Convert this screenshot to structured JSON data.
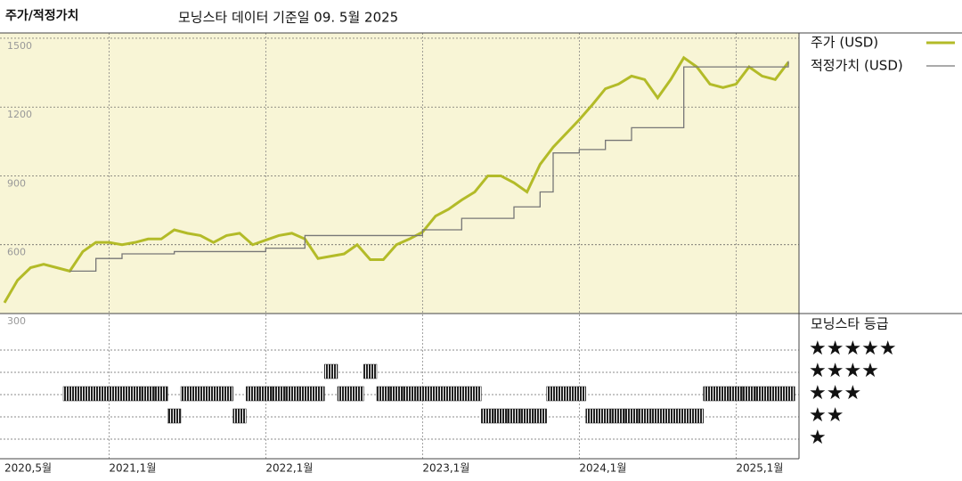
{
  "chart_data": [
    {
      "type": "line",
      "title": "주가/적정가치",
      "subtitle": "모닝스타 데이터 기준일 09. 5월 2025",
      "x": [
        "2020-05",
        "2020-06",
        "2020-07",
        "2020-08",
        "2020-09",
        "2020-10",
        "2020-11",
        "2020-12",
        "2021-01",
        "2021-02",
        "2021-03",
        "2021-04",
        "2021-05",
        "2021-06",
        "2021-07",
        "2021-08",
        "2021-09",
        "2021-10",
        "2021-11",
        "2021-12",
        "2022-01",
        "2022-02",
        "2022-03",
        "2022-04",
        "2022-05",
        "2022-06",
        "2022-07",
        "2022-08",
        "2022-09",
        "2022-10",
        "2022-11",
        "2022-12",
        "2023-01",
        "2023-02",
        "2023-03",
        "2023-04",
        "2023-05",
        "2023-06",
        "2023-07",
        "2023-08",
        "2023-09",
        "2023-10",
        "2023-11",
        "2023-12",
        "2024-01",
        "2024-02",
        "2024-03",
        "2024-04",
        "2024-05",
        "2024-06",
        "2024-07",
        "2024-08",
        "2024-09",
        "2024-10",
        "2024-11",
        "2024-12",
        "2025-01",
        "2025-02",
        "2025-03",
        "2025-04",
        "2025-05"
      ],
      "series": [
        {
          "name": "주가 (USD)",
          "color": "#b3bb28",
          "values": [
            347,
            445,
            500,
            515,
            500,
            485,
            570,
            610,
            610,
            600,
            610,
            625,
            625,
            665,
            650,
            640,
            610,
            640,
            650,
            600,
            620,
            640,
            650,
            625,
            540,
            550,
            560,
            600,
            535,
            535,
            600,
            625,
            655,
            725,
            755,
            795,
            830,
            900,
            900,
            870,
            830,
            950,
            1025,
            1085,
            1145,
            1210,
            1280,
            1300,
            1335,
            1320,
            1240,
            1320,
            1415,
            1375,
            1300,
            1285,
            1300,
            1375,
            1335,
            1320,
            1395
          ]
        },
        {
          "name": "적정가치 (USD)",
          "color": "#777777",
          "values": [
            null,
            null,
            null,
            null,
            null,
            485,
            485,
            540,
            540,
            560,
            560,
            560,
            560,
            570,
            570,
            570,
            570,
            570,
            570,
            570,
            585,
            585,
            585,
            640,
            640,
            640,
            640,
            640,
            640,
            640,
            640,
            640,
            665,
            665,
            665,
            715,
            715,
            715,
            715,
            765,
            765,
            830,
            1000,
            1000,
            1015,
            1015,
            1055,
            1055,
            1110,
            1110,
            1110,
            1110,
            1375,
            1375,
            1375,
            1375,
            1375,
            1375,
            1375,
            1375,
            1400
          ]
        }
      ],
      "xlim": [
        "2020-05",
        "2025-05"
      ],
      "xticks": [
        {
          "value": "2020-05",
          "label": "2020,5월"
        },
        {
          "value": "2021-01",
          "label": "2021,1월"
        },
        {
          "value": "2022-01",
          "label": "2022,1월"
        },
        {
          "value": "2023-01",
          "label": "2023,1월"
        },
        {
          "value": "2024-01",
          "label": "2024,1월"
        },
        {
          "value": "2025-01",
          "label": "2025,1월"
        }
      ],
      "ylim": [
        300,
        1523
      ],
      "yticks": [
        300,
        600,
        900,
        1200,
        1500
      ],
      "grid": true,
      "background": "#f8f5d6"
    },
    {
      "type": "rating",
      "title": "모닝스타 등급",
      "color": "#222222",
      "levels": [
        {
          "value": 5,
          "label": "★★★★★"
        },
        {
          "value": 4,
          "label": "★★★★"
        },
        {
          "value": 3,
          "label": "★★★"
        },
        {
          "value": 2,
          "label": "★★"
        },
        {
          "value": 1,
          "label": "★"
        }
      ],
      "values": [
        null,
        null,
        null,
        null,
        null,
        3,
        3,
        3,
        3,
        3,
        3,
        3,
        3,
        2,
        3,
        3,
        3,
        3,
        2,
        3,
        3,
        3,
        3,
        3,
        3,
        4,
        3,
        3,
        4,
        3,
        3,
        3,
        3,
        3,
        3,
        3,
        3,
        2,
        2,
        2,
        2,
        2,
        3,
        3,
        3,
        2,
        2,
        2,
        2,
        2,
        2,
        2,
        2,
        2,
        3,
        3,
        3,
        3,
        3,
        3,
        3
      ]
    }
  ]
}
